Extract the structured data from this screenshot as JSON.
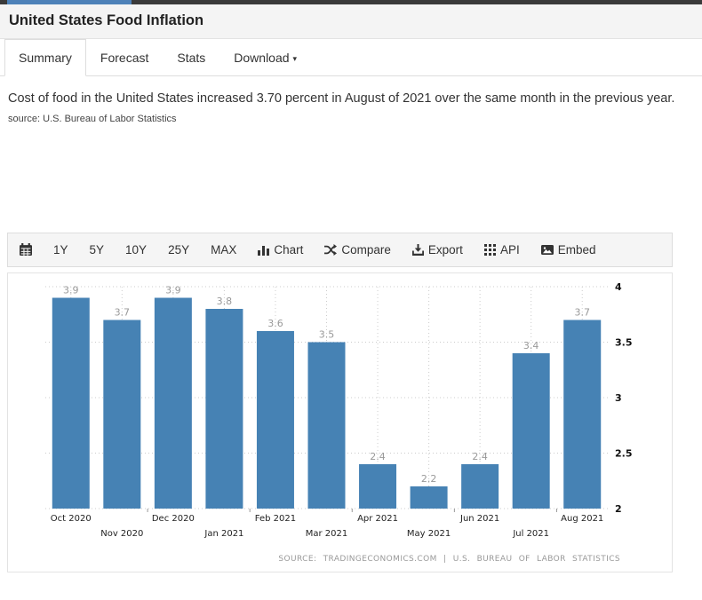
{
  "topbar": {
    "bar_color": "#3a3a3a",
    "accent_color": "#4d81b8"
  },
  "header": {
    "title": "United States Food Inflation"
  },
  "tabs": [
    {
      "label": "Summary",
      "active": true
    },
    {
      "label": "Forecast",
      "active": false
    },
    {
      "label": "Stats",
      "active": false
    },
    {
      "label": "Download",
      "active": false,
      "caret": "▾"
    }
  ],
  "summary": {
    "text": "Cost of food in the United States increased 3.70 percent in August of 2021 over the same month in the previous year.",
    "source_note": "source: U.S. Bureau of Labor Statistics"
  },
  "toolbar": {
    "items": [
      {
        "icon": "calendar-icon",
        "label": ""
      },
      {
        "label": "1Y"
      },
      {
        "label": "5Y"
      },
      {
        "label": "10Y"
      },
      {
        "label": "25Y"
      },
      {
        "label": "MAX"
      },
      {
        "icon": "bar-chart-icon",
        "label": "Chart"
      },
      {
        "icon": "shuffle-icon",
        "label": "Compare"
      },
      {
        "icon": "download-icon",
        "label": "Export"
      },
      {
        "icon": "grid-icon",
        "label": "API"
      },
      {
        "icon": "image-icon",
        "label": "Embed"
      }
    ]
  },
  "chart_data": {
    "type": "bar",
    "title": "United States Food Inflation",
    "categories": [
      "Oct 2020",
      "Nov 2020",
      "Dec 2020",
      "Jan 2021",
      "Feb 2021",
      "Mar 2021",
      "Apr 2021",
      "May 2021",
      "Jun 2021",
      "Jul 2021",
      "Aug 2021"
    ],
    "values": [
      3.9,
      3.7,
      3.9,
      3.8,
      3.6,
      3.5,
      2.4,
      2.2,
      2.4,
      3.4,
      3.7
    ],
    "ylim": [
      2,
      4
    ],
    "yticks": [
      2,
      2.5,
      3,
      3.5,
      4
    ],
    "grid": true,
    "legend": "none",
    "bar_color": "#4682b4",
    "value_label_color": "#999999",
    "axis_label_color": "#222222",
    "source_line": "SOURCE: TRADINGECONOMICS.COM | U.S. BUREAU OF LABOR STATISTICS"
  }
}
